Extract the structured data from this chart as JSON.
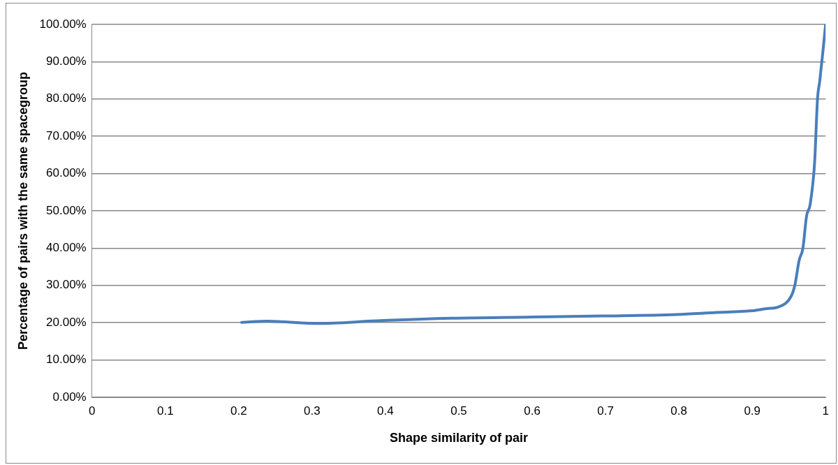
{
  "chart_data": {
    "type": "line",
    "xlabel": "Shape similarity of pair",
    "ylabel": "Percentage of pairs with the same spacegroup",
    "series": [
      {
        "color": "#4a7ebb",
        "x": [
          0.204,
          0.239,
          0.31,
          0.387,
          0.49,
          0.592,
          0.695,
          0.797,
          0.848,
          0.9,
          0.92,
          0.935,
          0.953,
          0.958,
          0.964,
          0.969,
          0.974,
          0.979,
          0.985,
          0.989,
          0.992,
          0.997,
          1.0
        ],
        "values": [
          20.1,
          20.4,
          19.8,
          20.5,
          21.2,
          21.5,
          21.8,
          22.2,
          22.7,
          23.2,
          23.8,
          24.2,
          27.1,
          30.0,
          36.8,
          39.9,
          48.6,
          51.8,
          63.0,
          80.2,
          84.8,
          94.1,
          100
        ]
      }
    ],
    "xlim": [
      0,
      1
    ],
    "xticks": [
      0,
      0.1,
      0.2,
      0.3,
      0.4,
      0.5,
      0.6,
      0.7,
      0.8,
      0.9,
      1
    ],
    "ylim": [
      0,
      100
    ],
    "yticks": [
      {
        "value": 0,
        "label": "0.00%"
      },
      {
        "value": 10,
        "label": "10.00%"
      },
      {
        "value": 20,
        "label": "20.00%"
      },
      {
        "value": 30,
        "label": "30.00%"
      },
      {
        "value": 40,
        "label": "40.00%"
      },
      {
        "value": 50,
        "label": "50.00%"
      },
      {
        "value": 60,
        "label": "60.00%"
      },
      {
        "value": 70,
        "label": "70.00%"
      },
      {
        "value": 80,
        "label": "80.00%"
      },
      {
        "value": 90,
        "label": "90.00%"
      },
      {
        "value": 100,
        "label": "100.00%"
      }
    ],
    "grid": "y",
    "marker": "none",
    "line_style": "solid",
    "legend": false
  }
}
